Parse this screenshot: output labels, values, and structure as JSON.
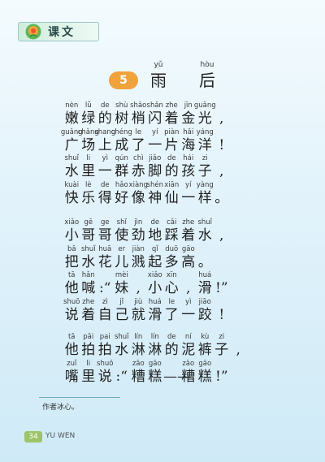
{
  "header": {
    "label": "课文"
  },
  "lesson": {
    "number": "5",
    "title": [
      {
        "py": "yǔ",
        "hz": "雨"
      },
      {
        "py": "hòu",
        "hz": "后"
      }
    ]
  },
  "stanzas": [
    [
      [
        [
          "nèn",
          "嫩"
        ],
        [
          "lǜ",
          "绿"
        ],
        [
          "de",
          "的"
        ],
        [
          "shù",
          "树"
        ],
        [
          "shāo",
          "梢"
        ],
        [
          "shǎn",
          "闪"
        ],
        [
          "zhe",
          "着"
        ],
        [
          "jīn",
          "金"
        ],
        [
          "guāng",
          "光"
        ],
        [
          "",
          ","
        ]
      ],
      [
        [
          "guǎng",
          "广"
        ],
        [
          "chǎng",
          "场"
        ],
        [
          "shang",
          "上"
        ],
        [
          "chéng",
          "成"
        ],
        [
          "le",
          "了"
        ],
        [
          "yí",
          "一"
        ],
        [
          "piàn",
          "片"
        ],
        [
          "hǎi",
          "海"
        ],
        [
          "yáng",
          "洋"
        ],
        [
          "",
          "!"
        ]
      ],
      [
        [
          "shuǐ",
          "水"
        ],
        [
          "li",
          "里"
        ],
        [
          "yì",
          "一"
        ],
        [
          "qún",
          "群"
        ],
        [
          "chì",
          "赤"
        ],
        [
          "jiǎo",
          "脚"
        ],
        [
          "de",
          "的"
        ],
        [
          "hái",
          "孩"
        ],
        [
          "zi",
          "子"
        ],
        [
          "",
          ","
        ]
      ],
      [
        [
          "kuài",
          "快"
        ],
        [
          "lè",
          "乐"
        ],
        [
          "de",
          "得"
        ],
        [
          "hǎo",
          "好"
        ],
        [
          "xiàng",
          "像"
        ],
        [
          "shén",
          "神"
        ],
        [
          "xiān",
          "仙"
        ],
        [
          "yí",
          "一"
        ],
        [
          "yàng",
          "样"
        ],
        [
          "",
          "。"
        ]
      ]
    ],
    [
      [
        [
          "xiǎo",
          "小"
        ],
        [
          "gē",
          "哥"
        ],
        [
          "ge",
          "哥"
        ],
        [
          "shǐ",
          "使"
        ],
        [
          "jìn",
          "劲"
        ],
        [
          "de",
          "地"
        ],
        [
          "cǎi",
          "踩"
        ],
        [
          "zhe",
          "着"
        ],
        [
          "shuǐ",
          "水"
        ],
        [
          "",
          ","
        ]
      ],
      [
        [
          "bǎ",
          "把"
        ],
        [
          "shuǐ",
          "水"
        ],
        [
          "huā",
          "花"
        ],
        [
          "er",
          "儿"
        ],
        [
          "jiàn",
          "溅"
        ],
        [
          "qǐ",
          "起"
        ],
        [
          "duō",
          "多"
        ],
        [
          "gāo",
          "高"
        ],
        [
          "",
          "。"
        ]
      ],
      [
        [
          "tā",
          "他"
        ],
        [
          "hǎn",
          "喊"
        ],
        [
          "",
          ":“"
        ],
        [
          "mèi",
          "妹"
        ],
        [
          "",
          ","
        ],
        [
          "xiǎo",
          "小"
        ],
        [
          "xīn",
          "心"
        ],
        [
          "",
          ","
        ],
        [
          "huá",
          "滑"
        ],
        [
          "",
          "!”"
        ]
      ],
      [
        [
          "shuō",
          "说"
        ],
        [
          "zhe",
          "着"
        ],
        [
          "zì",
          "自"
        ],
        [
          "jǐ",
          "己"
        ],
        [
          "jiù",
          "就"
        ],
        [
          "huá",
          "滑"
        ],
        [
          "le",
          "了"
        ],
        [
          "yì",
          "一"
        ],
        [
          "jiāo",
          "跤"
        ],
        [
          "",
          "!"
        ]
      ]
    ],
    [
      [
        [
          "tā",
          "他"
        ],
        [
          "pāi",
          "拍"
        ],
        [
          "pai",
          "拍"
        ],
        [
          "shuǐ",
          "水"
        ],
        [
          "lín",
          "淋"
        ],
        [
          "lín",
          "淋"
        ],
        [
          "de",
          "的"
        ],
        [
          "ní",
          "泥"
        ],
        [
          "kù",
          "裤"
        ],
        [
          "zi",
          "子"
        ],
        [
          "",
          ","
        ]
      ],
      [
        [
          "zuǐ",
          "嘴"
        ],
        [
          "li",
          "里"
        ],
        [
          "shuō",
          "说"
        ],
        [
          "",
          ":“"
        ],
        [
          "zāo",
          "糟"
        ],
        [
          "gāo",
          "糕"
        ],
        [
          "",
          "——"
        ],
        [
          "zāo",
          "糟"
        ],
        [
          "gāo",
          "糕"
        ],
        [
          "",
          "!”"
        ]
      ]
    ]
  ],
  "footnote": "作者冰心。",
  "footer": {
    "page": "34",
    "subject": "YU WEN"
  },
  "colors": {
    "badge": "#f0a23c",
    "page_badge": "#9ec46a",
    "rule": "#6aa9c9"
  }
}
